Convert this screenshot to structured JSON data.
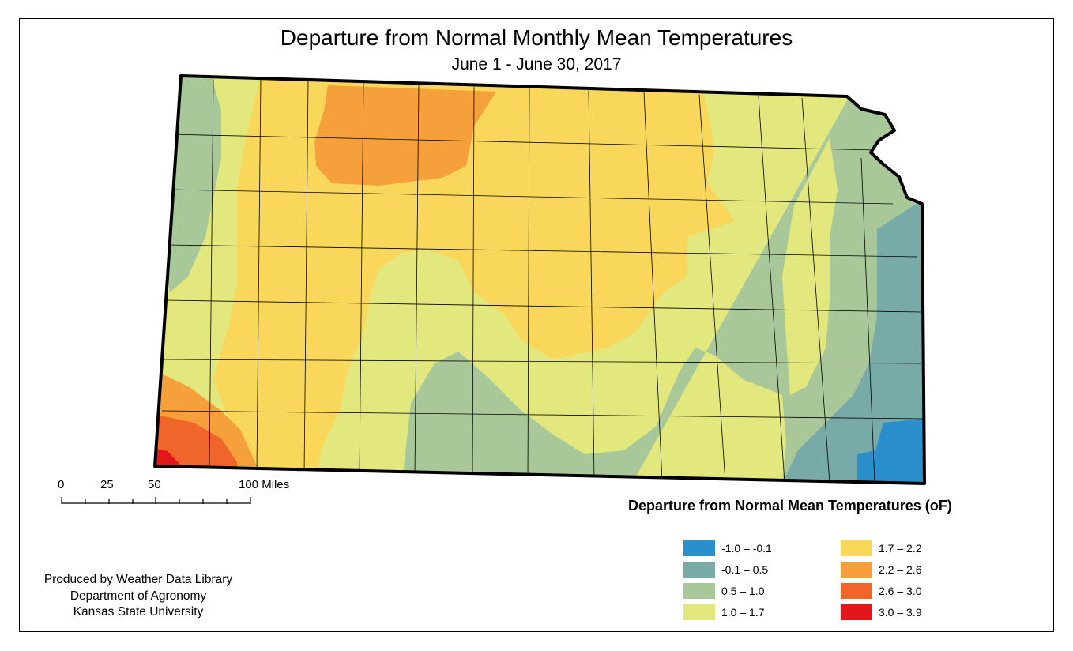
{
  "title": "Departure from Normal Monthly Mean Temperatures",
  "subtitle": "June 1 - June 30, 2017",
  "scale_bar": {
    "labels": [
      "0",
      "25",
      "50",
      "100 Miles"
    ]
  },
  "legend": {
    "title": "Departure from Normal Mean Temperatures (oF)",
    "items": [
      {
        "label": "-1.0 – -0.1",
        "color": "#2b8fcc"
      },
      {
        "label": "-0.1 – 0.5",
        "color": "#78aaa8"
      },
      {
        "label": "0.5 – 1.0",
        "color": "#a9c89a"
      },
      {
        "label": "1.0 – 1.7",
        "color": "#e2e87d"
      },
      {
        "label": "1.7 – 2.2",
        "color": "#f8d75a"
      },
      {
        "label": "2.2 – 2.6",
        "color": "#f6a03c"
      },
      {
        "label": "2.6 – 3.0",
        "color": "#f0652a"
      },
      {
        "label": "3.0 – 3.9",
        "color": "#e3161b"
      }
    ]
  },
  "credits": {
    "line1": "Produced by Weather Data Library",
    "line2": "Department of Agronomy",
    "line3": "Kansas State University"
  }
}
